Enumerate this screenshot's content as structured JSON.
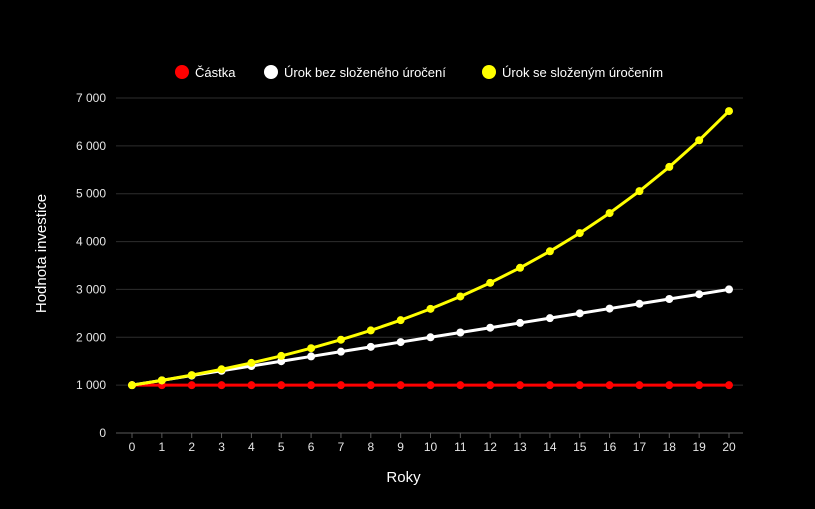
{
  "chart_data": {
    "type": "line",
    "xlabel": "Roky",
    "ylabel": "Hodnota investice",
    "ylim": [
      0,
      7000
    ],
    "yticks": [
      0,
      1000,
      2000,
      3000,
      4000,
      5000,
      6000,
      7000
    ],
    "ytick_labels": [
      "0",
      "1 000",
      "2 000",
      "3 000",
      "4 000",
      "5 000",
      "6 000",
      "7 000"
    ],
    "x": [
      0,
      1,
      2,
      3,
      4,
      5,
      6,
      7,
      8,
      9,
      10,
      11,
      12,
      13,
      14,
      15,
      16,
      17,
      18,
      19,
      20
    ],
    "grid": "horizontal",
    "legend_position": "top-center",
    "series": [
      {
        "name": "Částka",
        "color": "#ff0000",
        "values": [
          1000,
          1000,
          1000,
          1000,
          1000,
          1000,
          1000,
          1000,
          1000,
          1000,
          1000,
          1000,
          1000,
          1000,
          1000,
          1000,
          1000,
          1000,
          1000,
          1000,
          1000
        ]
      },
      {
        "name": "Úrok bez složeného úročení",
        "color": "#ffffff",
        "values": [
          1000,
          1100,
          1200,
          1300,
          1400,
          1500,
          1600,
          1700,
          1800,
          1900,
          2000,
          2100,
          2200,
          2300,
          2400,
          2500,
          2600,
          2700,
          2800,
          2900,
          3000
        ]
      },
      {
        "name": "Úrok se složeným úročením",
        "color": "#ffff00",
        "values": [
          1000,
          1100,
          1210,
          1331,
          1464,
          1611,
          1772,
          1949,
          2144,
          2358,
          2594,
          2853,
          3138,
          3452,
          3797,
          4177,
          4595,
          5054,
          5560,
          6116,
          6727
        ]
      }
    ]
  }
}
